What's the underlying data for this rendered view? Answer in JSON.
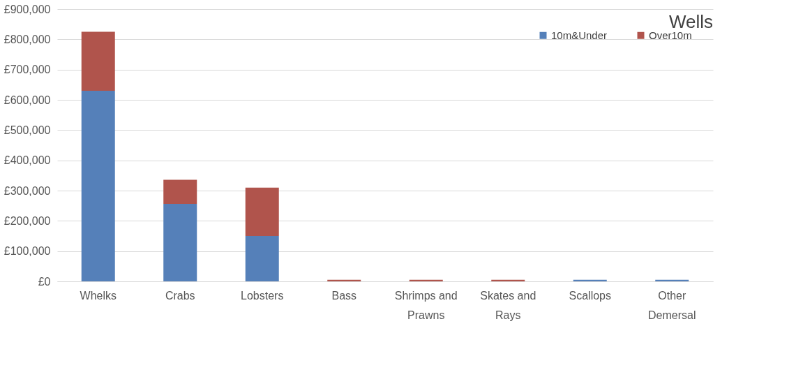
{
  "chart_data": {
    "type": "bar",
    "title": "Wells",
    "stacked": true,
    "categories": [
      "Whelks",
      "Crabs",
      "Lobsters",
      "Bass",
      "Shrimps and Prawns",
      "Skates and Rays",
      "Scallops",
      "Other Demersal"
    ],
    "series": [
      {
        "name": "10m&Under",
        "color": "#5580b9",
        "values": [
          630000,
          256000,
          150000,
          0,
          0,
          0,
          5000,
          5000
        ]
      },
      {
        "name": "Over10m",
        "color": "#b0544c",
        "values": [
          195000,
          80000,
          160000,
          5000,
          5000,
          5000,
          0,
          0
        ]
      }
    ],
    "ylim": [
      0,
      900000
    ],
    "yticks": [
      {
        "value": 0,
        "label": "£0"
      },
      {
        "value": 100000,
        "label": "£100,000"
      },
      {
        "value": 200000,
        "label": "£200,000"
      },
      {
        "value": 300000,
        "label": "£300,000"
      },
      {
        "value": 400000,
        "label": "£400,000"
      },
      {
        "value": 500000,
        "label": "£500,000"
      },
      {
        "value": 600000,
        "label": "£600,000"
      },
      {
        "value": 700000,
        "label": "£700,000"
      },
      {
        "value": 800000,
        "label": "£800,000"
      },
      {
        "value": 900000,
        "label": "£900,000"
      }
    ],
    "grid": "y",
    "legend": "top right"
  }
}
